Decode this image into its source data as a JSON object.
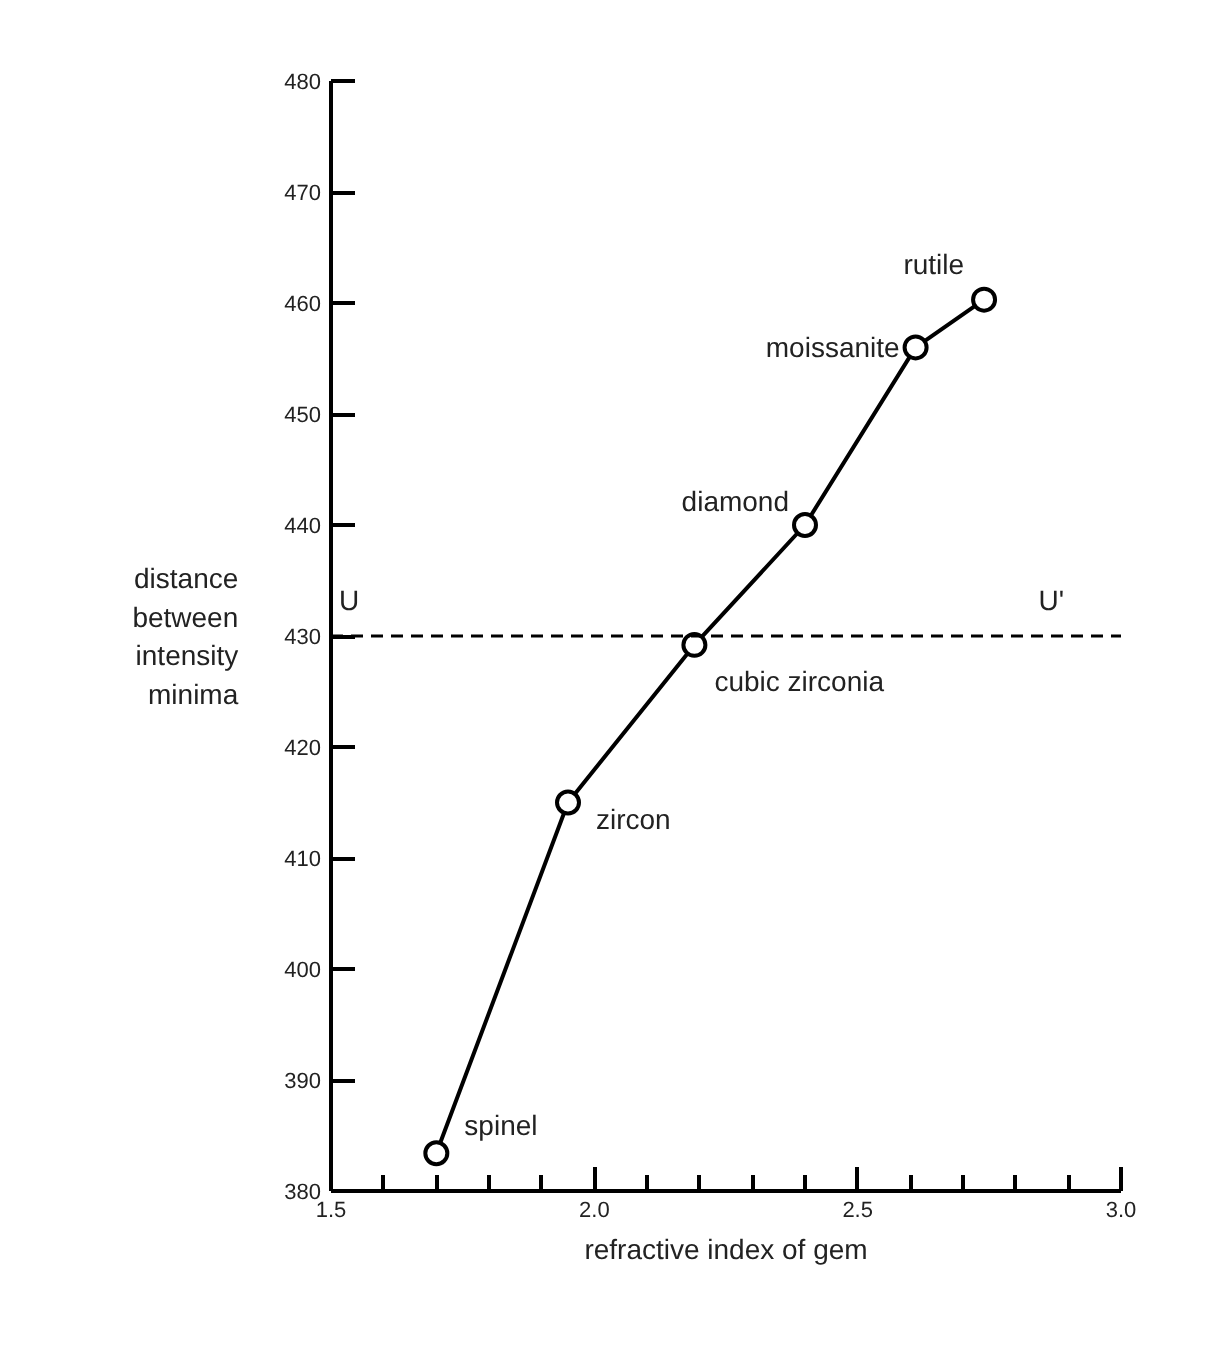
{
  "chart_data": {
    "type": "line",
    "xlabel": "refractive index of gem",
    "ylabel": "distance between intensity minima",
    "series": [
      {
        "color": "#000000",
        "x": [
          1.7,
          1.95,
          2.19,
          2.4,
          2.61,
          2.74
        ],
        "values": [
          383.4,
          415,
          429.2,
          440,
          456,
          460.3
        ]
      }
    ],
    "marker": "circle",
    "line_style": "solid",
    "grid": false,
    "xlim": [
      1.5,
      3.0
    ],
    "ylim": [
      380,
      480
    ],
    "xticks": [
      1.5,
      {
        "value": 1.6,
        "label": null
      },
      {
        "value": 1.7,
        "label": null
      },
      {
        "value": 1.8,
        "label": null
      },
      {
        "value": 1.9,
        "label": null
      },
      {
        "value": 2.0,
        "label": "2.0"
      },
      {
        "value": 2.1,
        "label": null
      },
      {
        "value": 2.2,
        "label": null
      },
      {
        "value": 2.3,
        "label": null
      },
      {
        "value": 2.4,
        "label": null
      },
      2.5,
      {
        "value": 2.6,
        "label": null
      },
      {
        "value": 2.7,
        "label": null
      },
      {
        "value": 2.8,
        "label": null
      },
      {
        "value": 2.9,
        "label": null
      },
      {
        "value": 3.0,
        "label": "3.0"
      }
    ],
    "yticks": [
      380,
      390,
      400,
      410,
      420,
      430,
      440,
      450,
      460,
      470,
      480
    ],
    "ref_lines": [
      {
        "axis": "y",
        "value": 430,
        "color": "#000000",
        "line_style": "dashed"
      }
    ],
    "annotations": [
      {
        "text": "spinel",
        "x": 1.7,
        "y": 383.4
      },
      {
        "text": "zircon",
        "x": 1.95,
        "y": 415
      },
      {
        "text": "cubic zirconia",
        "x": 2.19,
        "y": 429.2
      },
      {
        "text": "diamond",
        "x": 2.4,
        "y": 440
      },
      {
        "text": "moissanite",
        "x": 2.61,
        "y": 456
      },
      {
        "text": "rutile",
        "x": 2.74,
        "y": 460.3
      },
      {
        "text": "U",
        "x": 1.5,
        "y": 430
      },
      {
        "text": "U'",
        "x": 2.93,
        "y": 430
      }
    ]
  }
}
